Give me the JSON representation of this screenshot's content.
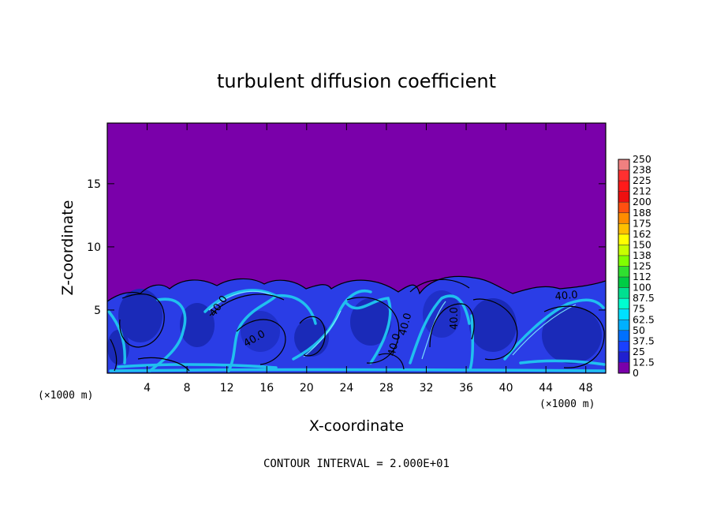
{
  "chart_data": {
    "type": "heatmap",
    "title": "turbulent diffusion coefficient",
    "xlabel": "X-coordinate",
    "ylabel": "Z-coordinate",
    "x_unit": "(×1000 m)",
    "y_unit": "(×1000 m)",
    "xlim": [
      0,
      50
    ],
    "ylim": [
      0,
      19.8
    ],
    "x_ticks": [
      4,
      8,
      12,
      16,
      20,
      24,
      28,
      32,
      36,
      40,
      44,
      48
    ],
    "y_ticks": [
      5,
      10,
      15
    ],
    "colorbar_labels": [
      "250",
      "238",
      "225",
      "212",
      "200",
      "188",
      "175",
      "162",
      "150",
      "138",
      "125",
      "112",
      "100",
      "87.5",
      "75",
      "62.5",
      "50",
      "37.5",
      "25",
      "12.5",
      "0"
    ],
    "colorbar_colors": [
      "#f08080",
      "#ff3030",
      "#ff1a1a",
      "#ee1010",
      "#ff5010",
      "#ff8c00",
      "#ffc000",
      "#ffff00",
      "#c8ff00",
      "#80ff00",
      "#30e030",
      "#00cc44",
      "#00e090",
      "#00ffd0",
      "#00e0ff",
      "#00b0ff",
      "#0070ff",
      "#1a40ff",
      "#2020d0",
      "#2020a0",
      "#7a00aa"
    ],
    "background_value": 0,
    "contour_interval": "CONTOUR INTERVAL = 2.000E+01",
    "contour_labels": [
      "40.0",
      "40.0",
      "40.0",
      "40.0",
      "40.0",
      "40.0"
    ],
    "boundary_layer_top_approx": 6.5
  }
}
